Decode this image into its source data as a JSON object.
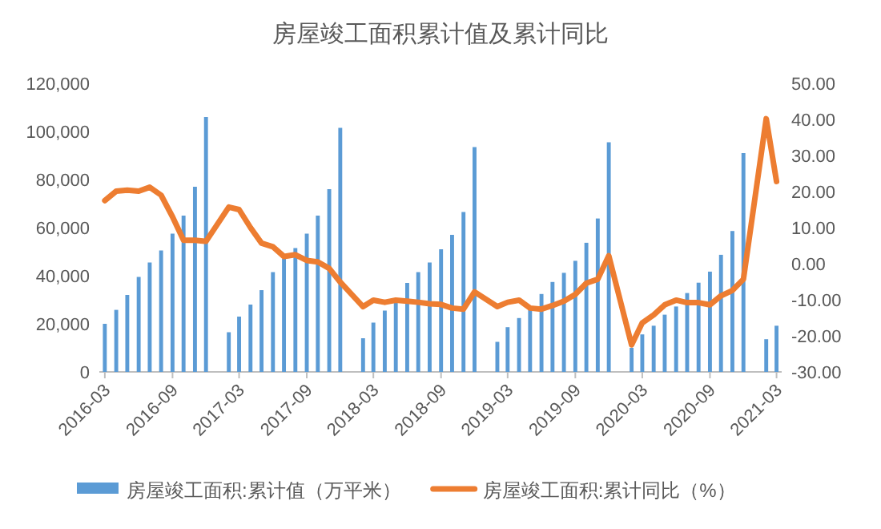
{
  "chart_data": {
    "type": "bar",
    "title": "房屋竣工面积累计值及累计同比",
    "xlim": [
      "2016-02-15",
      "2021-03-15"
    ],
    "xticks": [
      {
        "value": "2016-03",
        "label": "2016-03"
      },
      {
        "value": "2016-09",
        "label": "2016-09"
      },
      {
        "value": "2017-03",
        "label": "2017-03"
      },
      {
        "value": "2017-09",
        "label": "2017-09"
      },
      {
        "value": "2018-03",
        "label": "2018-03"
      },
      {
        "value": "2018-09",
        "label": "2018-09"
      },
      {
        "value": "2019-03",
        "label": "2019-03"
      },
      {
        "value": "2019-09",
        "label": "2019-09"
      },
      {
        "value": "2020-03",
        "label": "2020-03"
      },
      {
        "value": "2020-09",
        "label": "2020-09"
      },
      {
        "value": "2021-03",
        "label": "2021-03"
      }
    ],
    "x": [
      "2016-03",
      "2016-04",
      "2016-05",
      "2016-06",
      "2016-07",
      "2016-08",
      "2016-09",
      "2016-10",
      "2016-11",
      "2016-12",
      "2017-02",
      "2017-03",
      "2017-04",
      "2017-05",
      "2017-06",
      "2017-07",
      "2017-08",
      "2017-09",
      "2017-10",
      "2017-11",
      "2017-12",
      "2018-02",
      "2018-03",
      "2018-04",
      "2018-05",
      "2018-06",
      "2018-07",
      "2018-08",
      "2018-09",
      "2018-10",
      "2018-11",
      "2018-12",
      "2019-02",
      "2019-03",
      "2019-04",
      "2019-05",
      "2019-06",
      "2019-07",
      "2019-08",
      "2019-09",
      "2019-10",
      "2019-11",
      "2019-12",
      "2020-02",
      "2020-03",
      "2020-04",
      "2020-05",
      "2020-06",
      "2020-07",
      "2020-08",
      "2020-09",
      "2020-10",
      "2020-11",
      "2020-12",
      "2021-02",
      "2021-03"
    ],
    "ylim": [
      0,
      120000
    ],
    "yticks": [
      {
        "value": 0,
        "label": "0"
      },
      {
        "value": 20000,
        "label": "20,000"
      },
      {
        "value": 40000,
        "label": "40,000"
      },
      {
        "value": 60000,
        "label": "60,000"
      },
      {
        "value": 80000,
        "label": "80,000"
      },
      {
        "value": 100000,
        "label": "100,000"
      },
      {
        "value": 120000,
        "label": "120,000"
      }
    ],
    "y2lim": [
      -30,
      50
    ],
    "y2ticks": [
      {
        "value": -30,
        "label": "-30.00"
      },
      {
        "value": -20,
        "label": "-20.00"
      },
      {
        "value": -10,
        "label": "-10.00"
      },
      {
        "value": 0,
        "label": "0.00"
      },
      {
        "value": 10,
        "label": "10.00"
      },
      {
        "value": 20,
        "label": "20.00"
      },
      {
        "value": 30,
        "label": "30.00"
      },
      {
        "value": 40,
        "label": "40.00"
      },
      {
        "value": 50,
        "label": "50.00"
      }
    ],
    "grid": false,
    "legend": "bottom",
    "series": [
      {
        "name": "房屋竣工面积:累计值（万平米）",
        "color": "#5b9bd5",
        "values": [
          20000,
          25800,
          32000,
          39500,
          45500,
          50500,
          57500,
          65000,
          77000,
          106000,
          16500,
          23000,
          28000,
          34000,
          41500,
          47000,
          51500,
          57500,
          65000,
          76000,
          101500,
          14000,
          20500,
          25500,
          30000,
          37000,
          41500,
          45500,
          51000,
          57000,
          66500,
          93500,
          12500,
          18600,
          22400,
          26000,
          32400,
          37400,
          41200,
          46200,
          53700,
          63800,
          95500,
          10000,
          15600,
          19200,
          23800,
          27200,
          32800,
          37100,
          41700,
          48700,
          58600,
          91000,
          13600,
          19200
        ]
      },
      {
        "name": "房屋竣工面积:累计同比（%）",
        "type": "line",
        "axis": "y2",
        "color": "#ed7d31",
        "values": [
          17.5,
          20.1,
          20.4,
          20.1,
          21.2,
          19.0,
          13.0,
          6.5,
          6.5,
          6.2,
          15.7,
          15.0,
          10.0,
          5.7,
          4.7,
          2.0,
          2.5,
          0.9,
          0.5,
          -1.3,
          -5.1,
          -11.9,
          -10.1,
          -10.7,
          -10.1,
          -10.4,
          -10.7,
          -11.1,
          -11.3,
          -12.3,
          -12.6,
          -7.8,
          -11.9,
          -10.7,
          -10.1,
          -12.3,
          -12.6,
          -11.6,
          -10.4,
          -8.5,
          -5.4,
          -4.3,
          2.2,
          -22.5,
          -16.4,
          -14.2,
          -11.4,
          -10.1,
          -10.8,
          -10.8,
          -11.4,
          -8.9,
          -7.4,
          -4.3,
          40.2,
          22.8
        ]
      }
    ]
  }
}
